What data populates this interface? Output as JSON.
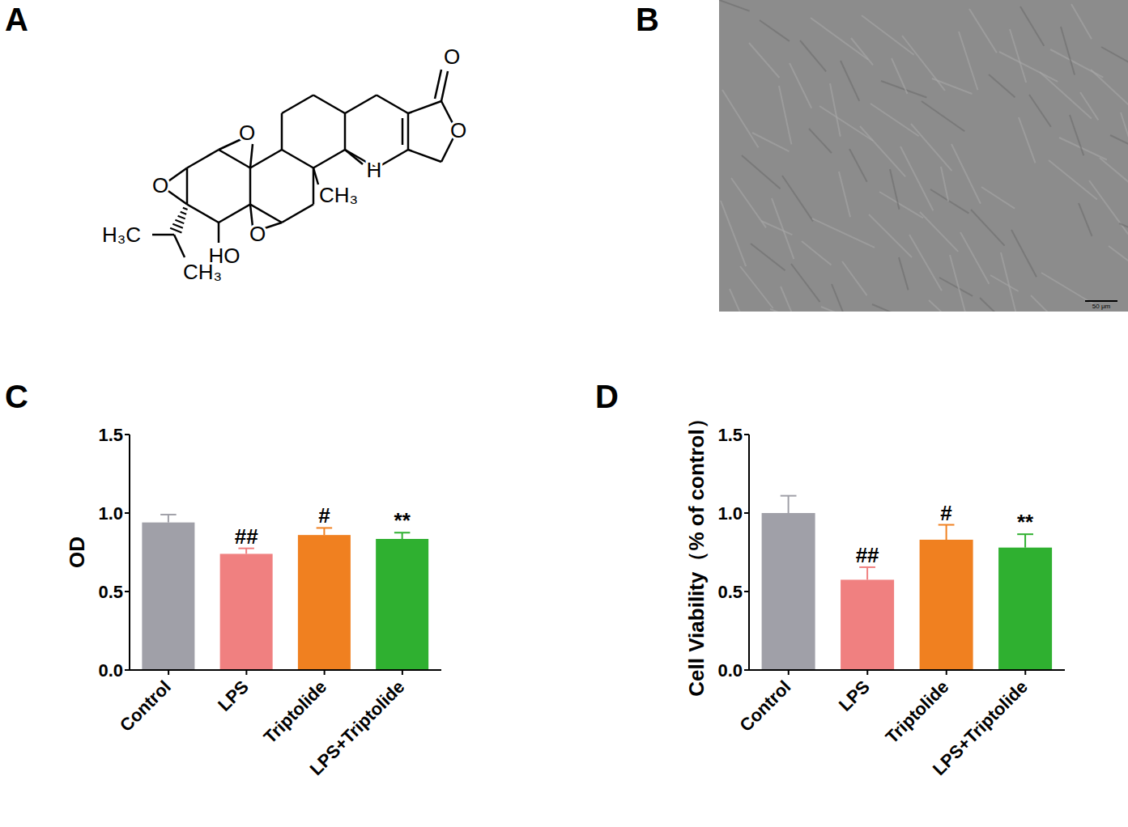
{
  "panel_labels": [
    "A",
    "B",
    "C",
    "D"
  ],
  "structure": {
    "labels": [
      "O",
      "O",
      "O",
      "O",
      "O",
      "CH₃",
      "H",
      "HO",
      "H₃C",
      "CH₃"
    ]
  },
  "micrograph": {
    "scale_bar": "50 μm"
  },
  "chart_data": [
    {
      "type": "bar",
      "ylabel": "OD",
      "categories": [
        "Control",
        "LPS",
        "Triptolide",
        "LPS+Triptolide"
      ],
      "values": [
        0.94,
        0.74,
        0.86,
        0.835
      ],
      "errors": [
        0.05,
        0.035,
        0.045,
        0.04
      ],
      "significance": [
        null,
        "##",
        "#",
        "**"
      ],
      "colors": [
        "#a0a0a8",
        "#f08080",
        "#f08020",
        "#2fb030"
      ],
      "ylim": [
        0,
        1.5
      ],
      "yticks": [
        {
          "value": 0,
          "label": "0.0"
        },
        {
          "value": 0.5,
          "label": "0.5"
        },
        {
          "value": 1,
          "label": "1.0"
        },
        {
          "value": 1.5,
          "label": "1.5"
        }
      ]
    },
    {
      "type": "bar",
      "ylabel": "Cell Viability（% of control）",
      "categories": [
        "Control",
        "LPS",
        "Triptolide",
        "LPS+Triptolide"
      ],
      "values": [
        1.0,
        0.575,
        0.83,
        0.78
      ],
      "errors": [
        0.11,
        0.08,
        0.095,
        0.085
      ],
      "significance": [
        null,
        "##",
        "#",
        "**"
      ],
      "colors": [
        "#a0a0a8",
        "#f08080",
        "#f08020",
        "#2fb030"
      ],
      "ylim": [
        0,
        1.5
      ],
      "yticks": [
        {
          "value": 0,
          "label": "0.0"
        },
        {
          "value": 0.5,
          "label": "0.5"
        },
        {
          "value": 1,
          "label": "1.0"
        },
        {
          "value": 1.5,
          "label": "1.5"
        }
      ]
    }
  ]
}
